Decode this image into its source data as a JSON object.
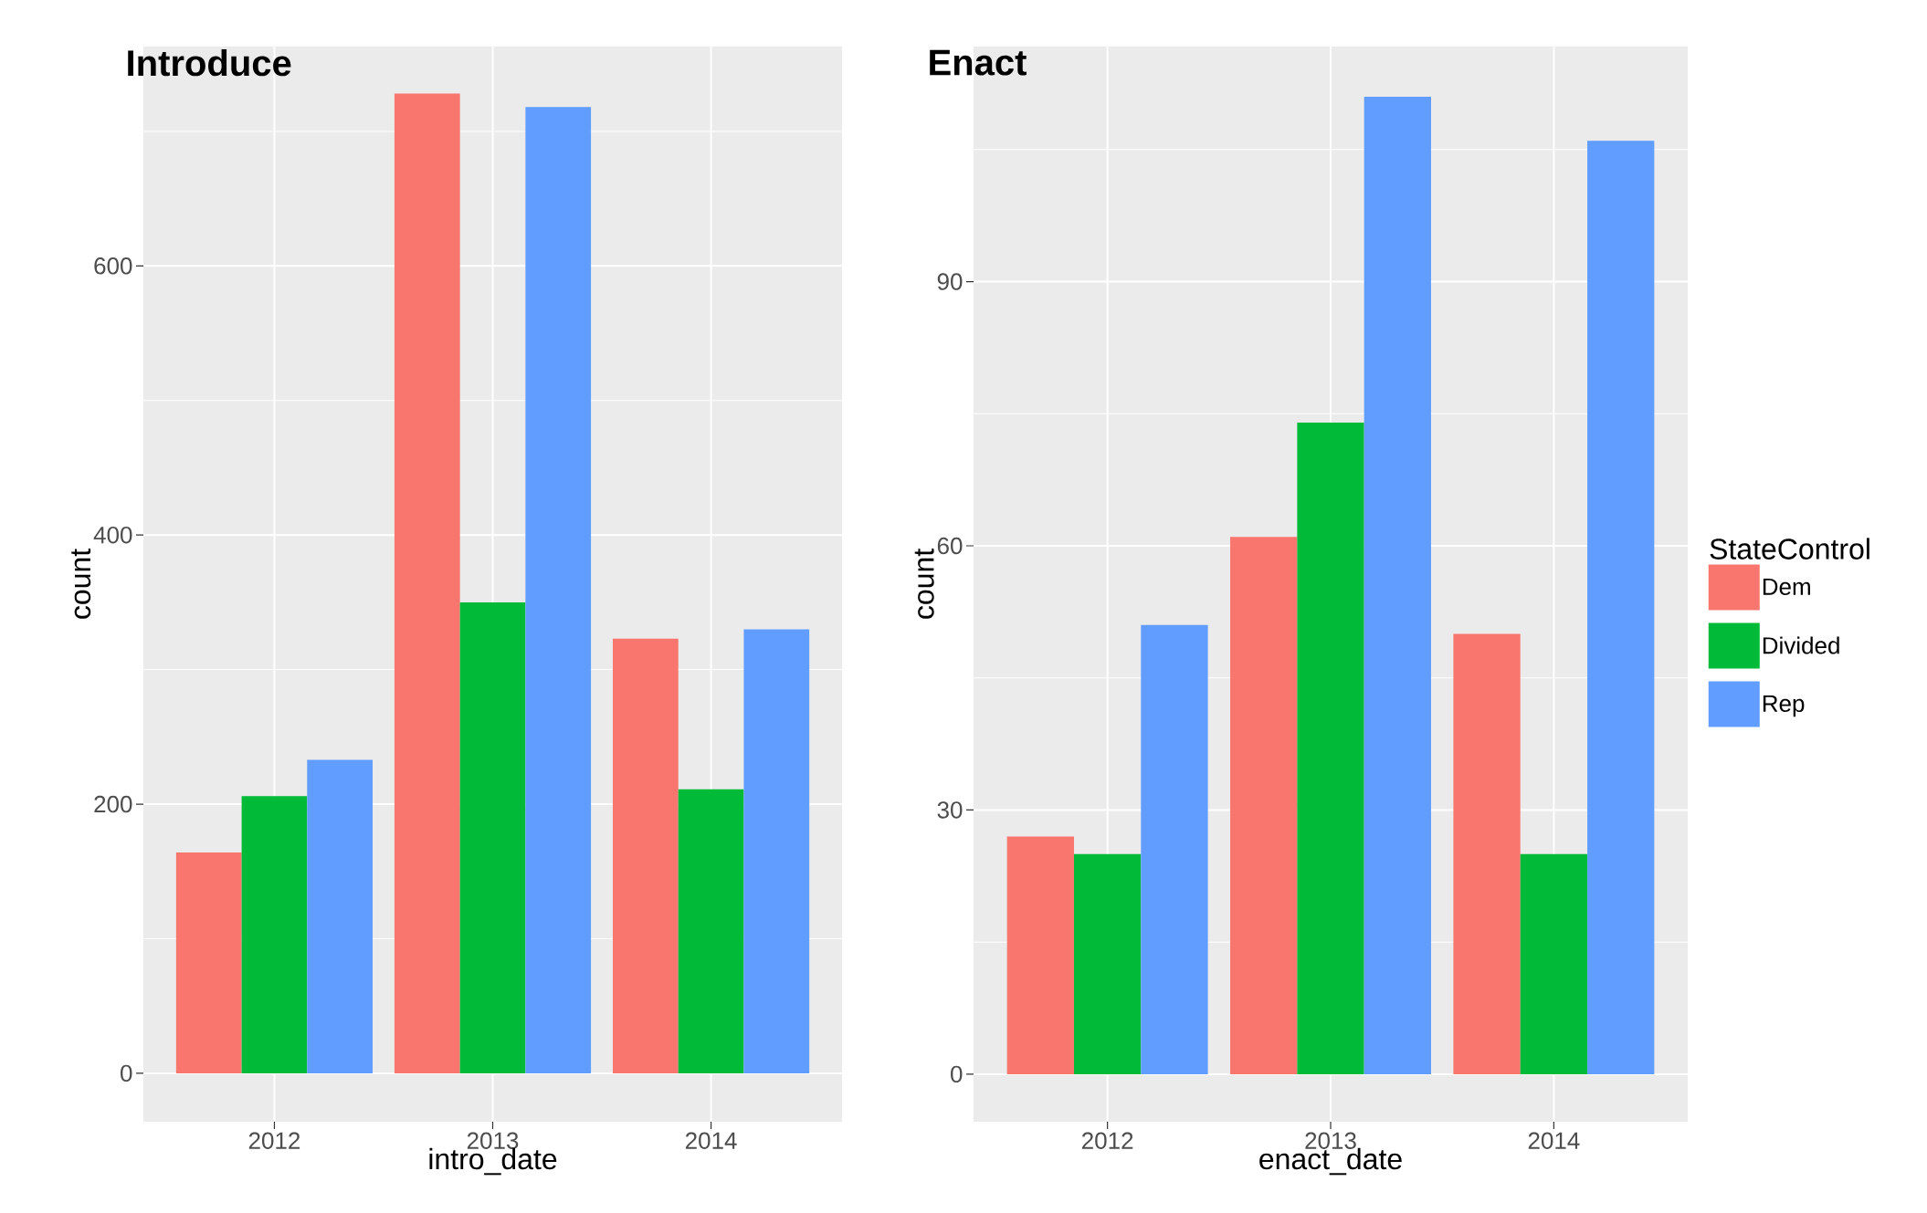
{
  "chart_data": [
    {
      "type": "bar",
      "title": "Introduce",
      "xlabel": "intro_date",
      "ylabel": "count",
      "categories": [
        "2012",
        "2013",
        "2014"
      ],
      "series": [
        {
          "color": "#f8766d",
          "values": [
            164,
            728,
            323
          ]
        },
        {
          "color": "#00ba38",
          "values": [
            206,
            350,
            211
          ]
        },
        {
          "color": "#619cff",
          "values": [
            233,
            718,
            330
          ]
        }
      ],
      "ylim": [
        -36,
        763
      ],
      "yticks": [
        0,
        200,
        400,
        600
      ],
      "grid": true
    },
    {
      "type": "bar",
      "title": "Enact",
      "xlabel": "enact_date",
      "ylabel": "count",
      "legend_title": "StateControl",
      "categories": [
        "2012",
        "2013",
        "2014"
      ],
      "series": [
        {
          "name": "Dem",
          "color": "#f8766d",
          "values": [
            27,
            61,
            50
          ]
        },
        {
          "name": "Divided",
          "color": "#00ba38",
          "values": [
            25,
            74,
            25
          ]
        },
        {
          "name": "Rep",
          "color": "#619cff",
          "values": [
            51,
            111,
            106
          ]
        }
      ],
      "ylim": [
        -5.4,
        116.7
      ],
      "yticks": [
        0,
        30,
        60,
        90
      ],
      "grid": true,
      "legend": "right"
    }
  ]
}
